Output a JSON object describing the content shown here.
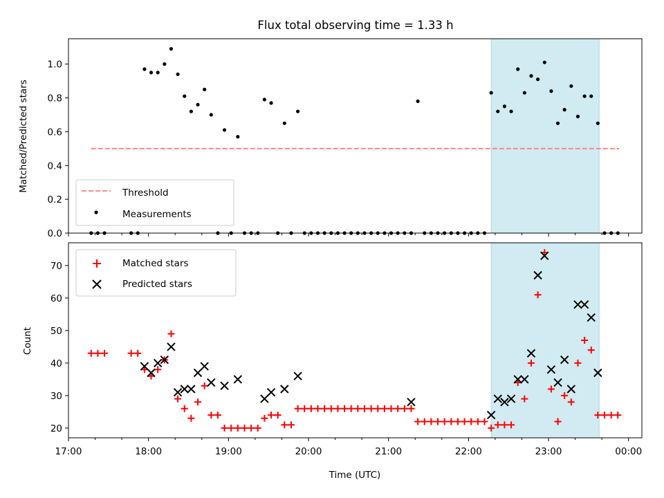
{
  "title": "Flux total observing time = 1.33 h",
  "colors": {
    "threshold": "#ff7f7f",
    "measurement": "#000000",
    "matched": "#ff0000",
    "predicted": "#000000",
    "shade": "#add8e6"
  },
  "chart_data": [
    {
      "type": "scatter",
      "ylabel": "Matched/Predicted stars",
      "xlabel": "",
      "xlim": [
        "17:00",
        "00:10"
      ],
      "ylim": [
        0,
        1.15
      ],
      "x_ticks": [
        "17:00",
        "18:00",
        "19:00",
        "20:00",
        "21:00",
        "22:00",
        "23:00",
        "00:00"
      ],
      "y_ticks": [
        "0.0",
        "0.2",
        "0.4",
        "0.6",
        "0.8",
        "1.0"
      ],
      "shaded_interval": [
        "22:17",
        "23:38"
      ],
      "threshold": {
        "name": "Threshold",
        "y": 0.5,
        "x_range": [
          "17:17",
          "23:53"
        ],
        "style": "dashed"
      },
      "legend_position": "lower-left",
      "series": [
        {
          "name": "Measurements",
          "x": [
            "17:17",
            "17:22",
            "17:27",
            "17:47",
            "17:52",
            "17:57",
            "18:02",
            "18:07",
            "18:12",
            "18:17",
            "18:22",
            "18:27",
            "18:32",
            "18:37",
            "18:42",
            "18:47",
            "18:52",
            "18:57",
            "19:02",
            "19:07",
            "19:12",
            "19:17",
            "19:22",
            "19:27",
            "19:32",
            "19:37",
            "19:42",
            "19:47",
            "19:52",
            "19:57",
            "20:02",
            "20:07",
            "20:12",
            "20:17",
            "20:22",
            "20:27",
            "20:32",
            "20:37",
            "20:42",
            "20:47",
            "20:52",
            "20:57",
            "21:02",
            "21:07",
            "21:12",
            "21:17",
            "21:22",
            "21:27",
            "21:32",
            "21:37",
            "21:42",
            "21:47",
            "21:52",
            "21:57",
            "22:02",
            "22:07",
            "22:12",
            "22:17",
            "22:22",
            "22:27",
            "22:32",
            "22:37",
            "22:42",
            "22:47",
            "22:52",
            "22:57",
            "23:02",
            "23:07",
            "23:12",
            "23:17",
            "23:22",
            "23:27",
            "23:32",
            "23:37",
            "23:42",
            "23:47",
            "23:52"
          ],
          "y": [
            0,
            0,
            0,
            0,
            0,
            0.97,
            0.95,
            0.95,
            1.0,
            1.09,
            0.94,
            0.81,
            0.72,
            0.76,
            0.85,
            0.7,
            0,
            0.61,
            0,
            0.57,
            0,
            0,
            0,
            0.79,
            0.77,
            0,
            0.65,
            0,
            0.72,
            0,
            0,
            0,
            0,
            0,
            0,
            0,
            0,
            0,
            0,
            0,
            0,
            0,
            0,
            0,
            0,
            0,
            0.78,
            0,
            0,
            0,
            0,
            0,
            0,
            0,
            0,
            0,
            0,
            0.83,
            0.72,
            0.75,
            0.72,
            0.97,
            0.83,
            0.93,
            0.91,
            1.01,
            0.84,
            0.65,
            0.73,
            0.87,
            0.69,
            0.81,
            0.81,
            0.65,
            0,
            0,
            0
          ]
        }
      ]
    },
    {
      "type": "scatter",
      "xlabel": "Time (UTC)",
      "ylabel": "Count",
      "xlim": [
        "17:00",
        "00:10"
      ],
      "ylim": [
        17,
        77
      ],
      "x_ticks": [
        "17:00",
        "18:00",
        "19:00",
        "20:00",
        "21:00",
        "22:00",
        "23:00",
        "00:00"
      ],
      "y_ticks": [
        "20",
        "30",
        "40",
        "50",
        "60",
        "70"
      ],
      "shaded_interval": [
        "22:17",
        "23:38"
      ],
      "legend_position": "upper-left",
      "series": [
        {
          "name": "Matched stars",
          "marker": "plus",
          "x": [
            "17:17",
            "17:22",
            "17:27",
            "17:47",
            "17:52",
            "17:57",
            "18:02",
            "18:07",
            "18:12",
            "18:17",
            "18:22",
            "18:27",
            "18:32",
            "18:37",
            "18:42",
            "18:47",
            "18:52",
            "18:57",
            "19:02",
            "19:07",
            "19:12",
            "19:17",
            "19:22",
            "19:27",
            "19:32",
            "19:37",
            "19:42",
            "19:47",
            "19:52",
            "19:57",
            "20:02",
            "20:07",
            "20:12",
            "20:17",
            "20:22",
            "20:27",
            "20:32",
            "20:37",
            "20:42",
            "20:47",
            "20:52",
            "20:57",
            "21:02",
            "21:07",
            "21:12",
            "21:17",
            "21:22",
            "21:27",
            "21:32",
            "21:37",
            "21:42",
            "21:47",
            "21:52",
            "21:57",
            "22:02",
            "22:07",
            "22:12",
            "22:17",
            "22:22",
            "22:27",
            "22:32",
            "22:37",
            "22:42",
            "22:47",
            "22:52",
            "22:57",
            "23:02",
            "23:07",
            "23:12",
            "23:17",
            "23:22",
            "23:27",
            "23:32",
            "23:37",
            "23:42",
            "23:47",
            "23:52"
          ],
          "y": [
            43,
            43,
            43,
            43,
            43,
            38,
            36,
            38,
            41,
            49,
            29,
            26,
            23,
            28,
            33,
            24,
            24,
            20,
            20,
            20,
            20,
            20,
            20,
            23,
            24,
            24,
            21,
            21,
            26,
            26,
            26,
            26,
            26,
            26,
            26,
            26,
            26,
            26,
            26,
            26,
            26,
            26,
            26,
            26,
            26,
            26,
            22,
            22,
            22,
            22,
            22,
            22,
            22,
            22,
            22,
            22,
            22,
            20,
            21,
            21,
            21,
            34,
            29,
            40,
            61,
            74,
            32,
            22,
            30,
            28,
            40,
            47,
            44,
            24,
            24,
            24,
            24
          ]
        },
        {
          "name": "Predicted stars",
          "marker": "x",
          "x": [
            "17:57",
            "18:02",
            "18:07",
            "18:12",
            "18:17",
            "18:22",
            "18:27",
            "18:32",
            "18:37",
            "18:42",
            "18:47",
            "18:57",
            "19:07",
            "19:27",
            "19:32",
            "19:42",
            "19:52",
            "21:17",
            "22:17",
            "22:22",
            "22:27",
            "22:32",
            "22:37",
            "22:42",
            "22:47",
            "22:52",
            "22:57",
            "23:02",
            "23:07",
            "23:12",
            "23:17",
            "23:22",
            "23:27",
            "23:32",
            "23:37"
          ],
          "y": [
            39,
            37,
            40,
            41,
            45,
            31,
            32,
            32,
            37,
            39,
            34,
            33,
            35,
            29,
            31,
            32,
            36,
            28,
            24,
            29,
            28,
            29,
            35,
            35,
            43,
            67,
            73,
            38,
            34,
            41,
            32,
            58,
            58,
            54,
            37
          ]
        }
      ]
    }
  ]
}
